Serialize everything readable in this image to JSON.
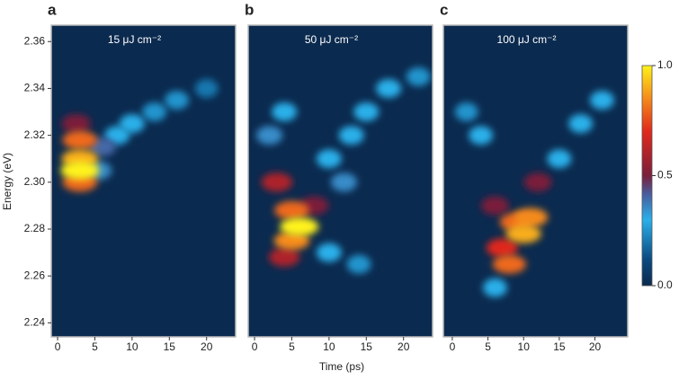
{
  "axis_labels": {
    "x": "Time (ps)",
    "y": "Energy (eV)"
  },
  "colorbar": {
    "ticks": [
      {
        "value": 0,
        "label": "0.0"
      },
      0.5,
      {
        "value": 1,
        "label": "1.0"
      }
    ],
    "colormap": [
      {
        "value": 0,
        "color": "#0b2a4f"
      },
      {
        "value": 0.12,
        "color": "#0b4a80"
      },
      {
        "value": 0.3,
        "color": "#2ab0ea"
      },
      {
        "value": 0.42,
        "color": "#4a5a9a"
      },
      {
        "value": 0.5,
        "color": "#7a1f3a"
      },
      {
        "value": 0.7,
        "color": "#e0281c"
      },
      {
        "value": 0.85,
        "color": "#f58a1a"
      },
      {
        "value": 1,
        "color": "#fff21a"
      }
    ]
  },
  "chart_data": [
    {
      "type": "heatmap",
      "panel_label": "a",
      "title": "15 μJ cm⁻²",
      "xlim": [
        -0.85,
        23.9
      ],
      "ylim": [
        2.234,
        2.367
      ],
      "xticks": [
        0,
        5,
        10,
        15,
        20
      ],
      "yticks": [
        2.24,
        2.26,
        2.28,
        {
          "value": 2.3,
          "label": "2.30"
        },
        2.32,
        2.34,
        2.36
      ],
      "spots": [
        {
          "x": 20,
          "y": 2.34,
          "v": 0.2
        },
        {
          "x": 16,
          "y": 2.335,
          "v": 0.25
        },
        {
          "x": 13,
          "y": 2.33,
          "v": 0.25
        },
        {
          "x": 10,
          "y": 2.325,
          "v": 0.3
        },
        {
          "x": 8,
          "y": 2.32,
          "v": 0.3
        },
        {
          "x": 6,
          "y": 2.315,
          "v": 0.4
        },
        {
          "x": 5.5,
          "y": 2.305,
          "v": 0.35
        },
        {
          "x": 2.5,
          "y": 2.325,
          "v": 0.5
        },
        {
          "x": 3,
          "y": 2.318,
          "v": 0.8
        },
        {
          "x": 3,
          "y": 2.3,
          "v": 0.8
        },
        {
          "x": 3,
          "y": 2.31,
          "v": 0.9
        },
        {
          "x": 3,
          "y": 2.305,
          "v": 1.0
        }
      ]
    },
    {
      "type": "heatmap",
      "panel_label": "b",
      "title": "50 μJ cm⁻²",
      "xlim": [
        -0.85,
        23.9
      ],
      "ylim": [
        2.234,
        2.367
      ],
      "xticks": [
        0,
        5,
        10,
        15,
        20
      ],
      "spots": [
        {
          "x": 22,
          "y": 2.345,
          "v": 0.25
        },
        {
          "x": 18,
          "y": 2.34,
          "v": 0.3
        },
        {
          "x": 15,
          "y": 2.33,
          "v": 0.3
        },
        {
          "x": 13,
          "y": 2.32,
          "v": 0.3
        },
        {
          "x": 10,
          "y": 2.31,
          "v": 0.3
        },
        {
          "x": 4,
          "y": 2.33,
          "v": 0.3
        },
        {
          "x": 2,
          "y": 2.32,
          "v": 0.35
        },
        {
          "x": 14,
          "y": 2.265,
          "v": 0.25
        },
        {
          "x": 10,
          "y": 2.27,
          "v": 0.3
        },
        {
          "x": 12,
          "y": 2.3,
          "v": 0.35
        },
        {
          "x": 8,
          "y": 2.29,
          "v": 0.5
        },
        {
          "x": 3,
          "y": 2.3,
          "v": 0.6
        },
        {
          "x": 4,
          "y": 2.268,
          "v": 0.6
        },
        {
          "x": 5,
          "y": 2.288,
          "v": 0.8
        },
        {
          "x": 5,
          "y": 2.275,
          "v": 0.85
        },
        {
          "x": 6,
          "y": 2.281,
          "v": 1.0
        }
      ]
    },
    {
      "type": "heatmap",
      "panel_label": "c",
      "title": "100 μJ cm⁻²",
      "xlim": [
        -1.25,
        24.6
      ],
      "ylim": [
        2.234,
        2.367
      ],
      "xticks": [
        0,
        5,
        10,
        15,
        20
      ],
      "spots": [
        {
          "x": 21,
          "y": 2.335,
          "v": 0.3
        },
        {
          "x": 18,
          "y": 2.325,
          "v": 0.3
        },
        {
          "x": 15,
          "y": 2.31,
          "v": 0.3
        },
        {
          "x": 4,
          "y": 2.32,
          "v": 0.3
        },
        {
          "x": 2,
          "y": 2.33,
          "v": 0.25
        },
        {
          "x": 6,
          "y": 2.255,
          "v": 0.3
        },
        {
          "x": 12,
          "y": 2.3,
          "v": 0.5
        },
        {
          "x": 6,
          "y": 2.29,
          "v": 0.5
        },
        {
          "x": 7,
          "y": 2.272,
          "v": 0.7
        },
        {
          "x": 9,
          "y": 2.283,
          "v": 0.8
        },
        {
          "x": 8,
          "y": 2.265,
          "v": 0.8
        },
        {
          "x": 11,
          "y": 2.285,
          "v": 0.85
        },
        {
          "x": 10,
          "y": 2.278,
          "v": 0.9
        }
      ]
    }
  ]
}
